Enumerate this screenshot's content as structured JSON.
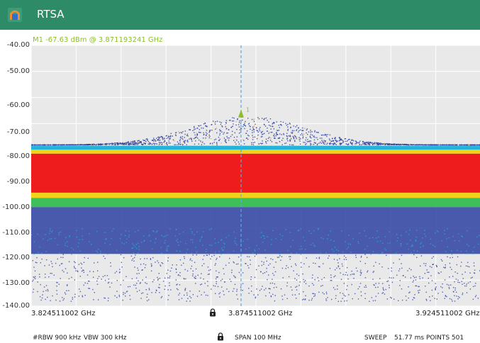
{
  "app": {
    "title": "RTSA"
  },
  "marker": {
    "readout": "M1   -67.63 dBm @ 3.871193241 GHz",
    "label": "1"
  },
  "y_axis": {
    "ticks": [
      "-40.00",
      "-50.00",
      "-60.00",
      "-70.00",
      "-80.00",
      "-90.00",
      "-100.00",
      "-110.00",
      "-120.00",
      "-130.00",
      "-140.00"
    ]
  },
  "x_axis": {
    "start": "3.824511002 GHz",
    "center": "3.874511002 GHz",
    "stop": "3.924511002 GHz"
  },
  "footer": {
    "rbw": "#RBW 900 kHz",
    "vbw": "VBW 300 kHz",
    "span": "SPAN 100 MHz",
    "sweep": "SWEEP",
    "sweep_value": "51.77 ms POINTS 501"
  },
  "colors": {
    "titlebar": "#2e8b67",
    "marker": "#8bbf2a",
    "marker_line": "#5aa9e6",
    "density_high": "#ee1c1c",
    "density_mid": "#f2d21b",
    "density_green": "#3fbf5a",
    "density_cyan": "#22b5d9",
    "density_low": "#2d3fa0"
  },
  "chart_data": {
    "type": "heatmap",
    "title": "",
    "xlabel": "",
    "ylabel": "",
    "x_range_ghz": [
      3.824511002,
      3.924511002
    ],
    "ylim": [
      -140,
      -40
    ],
    "grid": true,
    "marker": {
      "x_ghz": 3.871193241,
      "y_dbm": -67.63
    },
    "bands": [
      {
        "name": "",
        "from_dbm": -96.5,
        "to_dbm": -81.5,
        "color": "#ee1c1c"
      },
      {
        "name": "",
        "from_dbm": -98.5,
        "to_dbm": -96.5,
        "color": "#f2d21b"
      },
      {
        "name": "",
        "from_dbm": -81.5,
        "to_dbm": -80.0,
        "color": "#f2d21b"
      },
      {
        "name": "",
        "from_dbm": -102.0,
        "to_dbm": -98.5,
        "color": "#3fbf5a"
      },
      {
        "name": "",
        "from_dbm": -80.0,
        "to_dbm": -78.5,
        "color": "#22b5d9"
      }
    ]
  }
}
